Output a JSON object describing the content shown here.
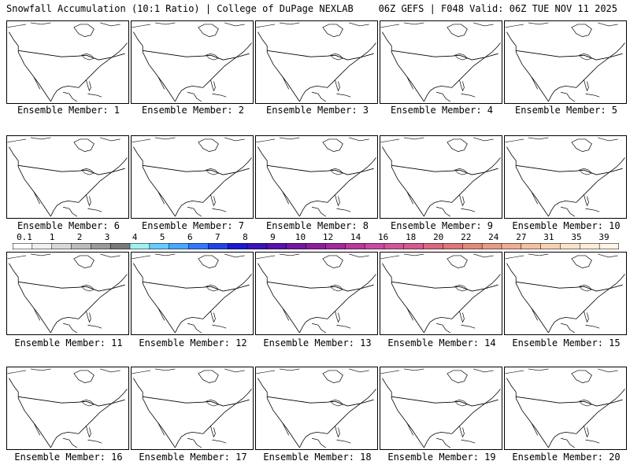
{
  "header": {
    "left_title": "Snowfall Accumulation (10:1 Ratio) | College of DuPage NEXLAB",
    "right_title": "06Z GEFS | F048 Valid: 06Z TUE NOV 11 2025"
  },
  "members": [
    {
      "label": "Ensemble Member: 1"
    },
    {
      "label": "Ensemble Member: 2"
    },
    {
      "label": "Ensemble Member: 3"
    },
    {
      "label": "Ensemble Member: 4"
    },
    {
      "label": "Ensemble Member: 5"
    },
    {
      "label": "Ensemble Member: 6"
    },
    {
      "label": "Ensemble Member: 7"
    },
    {
      "label": "Ensemble Member: 8"
    },
    {
      "label": "Ensemble Member: 9"
    },
    {
      "label": "Ensemble Member: 10"
    },
    {
      "label": "Ensemble Member: 11"
    },
    {
      "label": "Ensemble Member: 12"
    },
    {
      "label": "Ensemble Member: 13"
    },
    {
      "label": "Ensemble Member: 14"
    },
    {
      "label": "Ensemble Member: 15"
    },
    {
      "label": "Ensemble Member: 16"
    },
    {
      "label": "Ensemble Member: 17"
    },
    {
      "label": "Ensemble Member: 18"
    },
    {
      "label": "Ensemble Member: 19"
    },
    {
      "label": "Ensemble Member: 20"
    }
  ],
  "legend": {
    "ticks": [
      "0.1",
      "1",
      "2",
      "3",
      "4",
      "5",
      "6",
      "7",
      "8",
      "9",
      "10",
      "12",
      "14",
      "16",
      "18",
      "20",
      "22",
      "24",
      "27",
      "31",
      "35",
      "39"
    ],
    "colors": [
      "#ffffff",
      "#f0f0f0",
      "#d8d8d8",
      "#bcbcbc",
      "#9a9a9a",
      "#7a7a7a",
      "#9ff0f0",
      "#66ccff",
      "#4aa8ff",
      "#3377ff",
      "#1d46e8",
      "#1a1ad0",
      "#3a14b8",
      "#5a12a8",
      "#7418a0",
      "#8c1e9e",
      "#a02a9c",
      "#b83a9a",
      "#c84aa0",
      "#d0559a",
      "#d45a90",
      "#d86880",
      "#dc7878",
      "#e28a78",
      "#e89c84",
      "#eeae92",
      "#f2c0a2",
      "#f6d2b4",
      "#fae2c8",
      "#fcecd8",
      "#fef4e8"
    ]
  }
}
